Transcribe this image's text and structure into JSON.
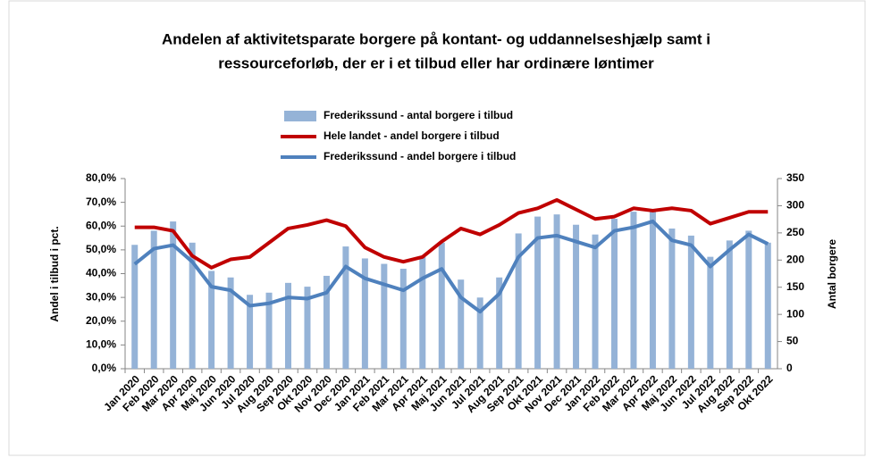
{
  "chart_data": {
    "type": "combo",
    "title": [
      "Andelen af aktivitetsparate borgere på kontant- og uddannelseshjælp samt i",
      "ressourceforløb, der er i et tilbud eller har ordinære løntimer"
    ],
    "ylabel": "Andel i tilbud i pct.",
    "y2label": "Antal borgere",
    "categories": [
      "Jan 2020",
      "Feb 2020",
      "Mar 2020",
      "Apr 2020",
      "Maj 2020",
      "Jun 2020",
      "Jul 2020",
      "Aug 2020",
      "Sep 2020",
      "Okt 2020",
      "Nov 2020",
      "Dec 2020",
      "Jan 2021",
      "Feb 2021",
      "Mar 2021",
      "Apr 2021",
      "Maj 2021",
      "Jun 2021",
      "Jul 2021",
      "Aug 2021",
      "Sep 2021",
      "Okt 2021",
      "Nov 2021",
      "Dec 2021",
      "Jan 2022",
      "Feb 2022",
      "Mar 2022",
      "Apr 2022",
      "Maj 2022",
      "Jun 2022",
      "Jul 2022",
      "Aug 2022",
      "Sep 2022",
      "Okt 2022"
    ],
    "series": [
      {
        "name": "Frederikssund - antal borgere i tilbud",
        "type": "bar",
        "axis": "y2",
        "color": "#95b3d7",
        "values": [
          228,
          254,
          271,
          232,
          180,
          168,
          136,
          140,
          158,
          151,
          171,
          225,
          203,
          193,
          184,
          206,
          232,
          164,
          131,
          168,
          249,
          280,
          284,
          265,
          247,
          276,
          289,
          289,
          258,
          245,
          206,
          236,
          254,
          232
        ]
      },
      {
        "name": "Hele landet - andel borgere i tilbud",
        "type": "line",
        "color": "#c00000",
        "values": [
          59.5,
          59.5,
          58,
          47.5,
          42.5,
          46,
          47,
          53,
          59,
          60.5,
          62.5,
          60,
          51,
          47,
          45,
          47,
          53.5,
          59,
          56.5,
          60.5,
          65.5,
          67.5,
          71,
          67,
          63,
          64,
          67.5,
          66.5,
          67.5,
          66.5,
          61,
          63.5,
          66,
          66
        ]
      },
      {
        "name": "Frederikssund - andel borgere i tilbud",
        "type": "line",
        "color": "#4f81bd",
        "values": [
          44,
          50.5,
          52,
          45,
          34.5,
          33,
          26.5,
          27.5,
          30,
          29.5,
          32,
          43,
          38,
          35.5,
          33,
          38,
          42,
          30,
          24,
          31.5,
          47,
          55,
          56,
          53.5,
          51,
          58,
          59.5,
          62,
          54,
          52,
          43,
          50,
          56.5,
          52.5
        ]
      }
    ],
    "ylim": [
      0,
      80
    ],
    "yticks": [
      {
        "value": 0,
        "label": "0,0%"
      },
      {
        "value": 10,
        "label": "10,0%"
      },
      {
        "value": 20,
        "label": "20,0%"
      },
      {
        "value": 30,
        "label": "30,0%"
      },
      {
        "value": 40,
        "label": "40,0%"
      },
      {
        "value": 50,
        "label": "50,0%"
      },
      {
        "value": 60,
        "label": "60,0%"
      },
      {
        "value": 70,
        "label": "70,0%"
      },
      {
        "value": 80,
        "label": "80,0%"
      }
    ],
    "y2lim": [
      0,
      350
    ],
    "y2ticks": [
      0,
      50,
      100,
      150,
      200,
      250,
      300,
      350
    ],
    "grid": false
  }
}
